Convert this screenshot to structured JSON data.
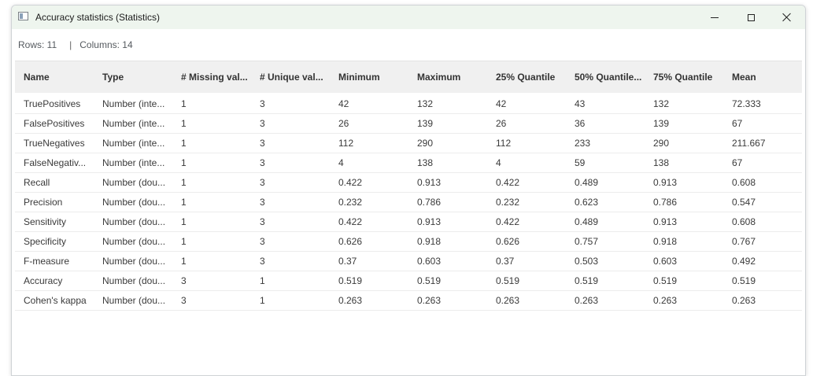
{
  "window": {
    "title": "Accuracy statistics (Statistics)"
  },
  "info": {
    "rows_label": "Rows: 11",
    "separator": "|",
    "columns_label": "Columns: 14"
  },
  "table": {
    "headers": [
      "Name",
      "Type",
      "# Missing val...",
      "# Unique val...",
      "Minimum",
      "Maximum",
      "25% Quantile",
      "50% Quantile...",
      "75% Quantile",
      "Mean"
    ],
    "rows": [
      [
        "TruePositives",
        "Number (inte...",
        "1",
        "3",
        "42",
        "132",
        "42",
        "43",
        "132",
        "72.333"
      ],
      [
        "FalsePositives",
        "Number (inte...",
        "1",
        "3",
        "26",
        "139",
        "26",
        "36",
        "139",
        "67"
      ],
      [
        "TrueNegatives",
        "Number (inte...",
        "1",
        "3",
        "112",
        "290",
        "112",
        "233",
        "290",
        "211.667"
      ],
      [
        "FalseNegativ...",
        "Number (inte...",
        "1",
        "3",
        "4",
        "138",
        "4",
        "59",
        "138",
        "67"
      ],
      [
        "Recall",
        "Number (dou...",
        "1",
        "3",
        "0.422",
        "0.913",
        "0.422",
        "0.489",
        "0.913",
        "0.608"
      ],
      [
        "Precision",
        "Number (dou...",
        "1",
        "3",
        "0.232",
        "0.786",
        "0.232",
        "0.623",
        "0.786",
        "0.547"
      ],
      [
        "Sensitivity",
        "Number (dou...",
        "1",
        "3",
        "0.422",
        "0.913",
        "0.422",
        "0.489",
        "0.913",
        "0.608"
      ],
      [
        "Specificity",
        "Number (dou...",
        "1",
        "3",
        "0.626",
        "0.918",
        "0.626",
        "0.757",
        "0.918",
        "0.767"
      ],
      [
        "F-measure",
        "Number (dou...",
        "1",
        "3",
        "0.37",
        "0.603",
        "0.37",
        "0.503",
        "0.603",
        "0.492"
      ],
      [
        "Accuracy",
        "Number (dou...",
        "3",
        "1",
        "0.519",
        "0.519",
        "0.519",
        "0.519",
        "0.519",
        "0.519"
      ],
      [
        "Cohen's kappa",
        "Number (dou...",
        "3",
        "1",
        "0.263",
        "0.263",
        "0.263",
        "0.263",
        "0.263",
        "0.263"
      ]
    ]
  },
  "icons": {
    "app": "window-app-icon",
    "minimize": "minimize-icon",
    "maximize": "maximize-icon",
    "close": "close-icon"
  }
}
